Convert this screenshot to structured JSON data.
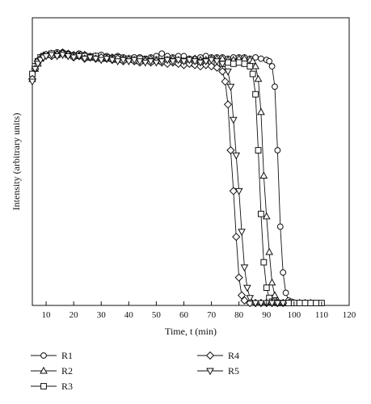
{
  "chart_data": {
    "type": "line",
    "title": "",
    "xlabel": "Time, t (min)",
    "ylabel": "Intensity (arbitrary units)",
    "xlim": [
      5,
      120
    ],
    "ylim": [
      0,
      1
    ],
    "xticks": [
      10,
      20,
      30,
      40,
      50,
      60,
      70,
      80,
      90,
      100,
      110,
      120
    ],
    "grid": false,
    "y_tick_labels": false,
    "legend_position": "below plot, two columns",
    "series": [
      {
        "name": "R1",
        "marker": "circle",
        "x": [
          5,
          6,
          7,
          8,
          9,
          10,
          12,
          14,
          16,
          18,
          20,
          22,
          24,
          26,
          28,
          30,
          32,
          34,
          36,
          38,
          40,
          42,
          44,
          46,
          48,
          50,
          52,
          54,
          56,
          58,
          60,
          62,
          64,
          66,
          68,
          70,
          72,
          74,
          76,
          78,
          80,
          82,
          84,
          86,
          88,
          90,
          91,
          92,
          93,
          94,
          95,
          96,
          97,
          98,
          99,
          100,
          102,
          104,
          106,
          108,
          110
        ],
        "y": [
          0.9,
          0.93,
          0.95,
          0.96,
          0.97,
          0.975,
          0.98,
          0.985,
          0.985,
          0.98,
          0.975,
          0.98,
          0.975,
          0.97,
          0.97,
          0.975,
          0.97,
          0.965,
          0.97,
          0.965,
          0.96,
          0.965,
          0.965,
          0.96,
          0.965,
          0.97,
          0.98,
          0.97,
          0.965,
          0.97,
          0.97,
          0.96,
          0.96,
          0.965,
          0.97,
          0.965,
          0.965,
          0.965,
          0.96,
          0.965,
          0.965,
          0.965,
          0.96,
          0.965,
          0.96,
          0.955,
          0.95,
          0.93,
          0.85,
          0.6,
          0.3,
          0.12,
          0.04,
          0.01,
          0.005,
          0,
          0,
          0,
          0,
          0,
          0
        ]
      },
      {
        "name": "R2",
        "marker": "triangle-up",
        "x": [
          5,
          6,
          7,
          8,
          9,
          10,
          12,
          14,
          16,
          18,
          20,
          22,
          24,
          26,
          28,
          30,
          32,
          34,
          36,
          38,
          40,
          42,
          44,
          46,
          48,
          50,
          52,
          54,
          56,
          58,
          60,
          62,
          64,
          66,
          68,
          70,
          72,
          74,
          76,
          78,
          80,
          82,
          84,
          85,
          86,
          87,
          88,
          89,
          90,
          91,
          92,
          93,
          94,
          96,
          98,
          100,
          102,
          104,
          106
        ],
        "y": [
          0.88,
          0.92,
          0.94,
          0.96,
          0.97,
          0.975,
          0.98,
          0.98,
          0.985,
          0.98,
          0.975,
          0.97,
          0.975,
          0.965,
          0.97,
          0.965,
          0.96,
          0.965,
          0.955,
          0.96,
          0.96,
          0.955,
          0.95,
          0.955,
          0.96,
          0.955,
          0.95,
          0.955,
          0.96,
          0.955,
          0.95,
          0.955,
          0.96,
          0.955,
          0.955,
          0.96,
          0.96,
          0.96,
          0.955,
          0.955,
          0.96,
          0.96,
          0.955,
          0.95,
          0.93,
          0.88,
          0.75,
          0.5,
          0.34,
          0.2,
          0.08,
          0.03,
          0.01,
          0,
          0,
          0,
          0,
          0,
          0
        ]
      },
      {
        "name": "R3",
        "marker": "square",
        "x": [
          5,
          6,
          7,
          8,
          9,
          10,
          12,
          14,
          16,
          18,
          20,
          22,
          24,
          26,
          28,
          30,
          32,
          34,
          36,
          38,
          40,
          42,
          44,
          46,
          48,
          50,
          52,
          54,
          56,
          58,
          60,
          62,
          64,
          66,
          68,
          70,
          72,
          74,
          76,
          78,
          80,
          82,
          84,
          85,
          86,
          87,
          88,
          89,
          90,
          91,
          92,
          94,
          96,
          98,
          100,
          102,
          104,
          106,
          108,
          110
        ],
        "y": [
          0.9,
          0.93,
          0.95,
          0.965,
          0.97,
          0.975,
          0.98,
          0.975,
          0.98,
          0.975,
          0.97,
          0.975,
          0.97,
          0.965,
          0.97,
          0.96,
          0.965,
          0.96,
          0.965,
          0.955,
          0.96,
          0.955,
          0.96,
          0.955,
          0.95,
          0.955,
          0.95,
          0.955,
          0.95,
          0.945,
          0.95,
          0.945,
          0.94,
          0.945,
          0.95,
          0.945,
          0.94,
          0.94,
          0.945,
          0.94,
          0.945,
          0.94,
          0.93,
          0.9,
          0.82,
          0.6,
          0.35,
          0.16,
          0.06,
          0.02,
          0.005,
          0,
          0,
          0,
          0,
          0,
          0,
          0,
          0,
          0
        ]
      },
      {
        "name": "R4",
        "marker": "diamond",
        "x": [
          5,
          6,
          7,
          8,
          9,
          10,
          12,
          14,
          16,
          18,
          20,
          22,
          24,
          26,
          28,
          30,
          32,
          34,
          36,
          38,
          40,
          42,
          44,
          46,
          48,
          50,
          52,
          54,
          56,
          58,
          60,
          62,
          64,
          66,
          68,
          70,
          72,
          74,
          75,
          76,
          77,
          78,
          79,
          80,
          81,
          82,
          84,
          86,
          88,
          90,
          92,
          94,
          96
        ],
        "y": [
          0.88,
          0.92,
          0.95,
          0.96,
          0.97,
          0.975,
          0.97,
          0.975,
          0.98,
          0.975,
          0.965,
          0.97,
          0.96,
          0.965,
          0.96,
          0.965,
          0.96,
          0.955,
          0.96,
          0.95,
          0.955,
          0.95,
          0.945,
          0.95,
          0.945,
          0.95,
          0.945,
          0.94,
          0.945,
          0.94,
          0.935,
          0.94,
          0.935,
          0.93,
          0.935,
          0.93,
          0.925,
          0.91,
          0.87,
          0.78,
          0.6,
          0.44,
          0.26,
          0.1,
          0.03,
          0.01,
          0,
          0,
          0,
          0,
          0,
          0,
          0
        ]
      },
      {
        "name": "R5",
        "marker": "triangle-down",
        "x": [
          5,
          6,
          7,
          8,
          9,
          10,
          12,
          14,
          16,
          18,
          20,
          22,
          24,
          26,
          28,
          30,
          32,
          34,
          36,
          38,
          40,
          42,
          44,
          46,
          48,
          50,
          52,
          54,
          56,
          58,
          60,
          62,
          64,
          66,
          68,
          70,
          72,
          74,
          76,
          77,
          78,
          79,
          80,
          81,
          82,
          83,
          84,
          86,
          88,
          90,
          92,
          94,
          96
        ],
        "y": [
          0.87,
          0.92,
          0.94,
          0.955,
          0.965,
          0.97,
          0.975,
          0.97,
          0.975,
          0.97,
          0.965,
          0.97,
          0.96,
          0.965,
          0.96,
          0.955,
          0.96,
          0.955,
          0.95,
          0.955,
          0.95,
          0.955,
          0.95,
          0.945,
          0.95,
          0.945,
          0.95,
          0.955,
          0.95,
          0.955,
          0.95,
          0.955,
          0.95,
          0.945,
          0.95,
          0.955,
          0.95,
          0.94,
          0.91,
          0.85,
          0.72,
          0.58,
          0.44,
          0.28,
          0.14,
          0.06,
          0.02,
          0,
          0,
          0,
          0,
          0,
          0
        ]
      }
    ]
  }
}
